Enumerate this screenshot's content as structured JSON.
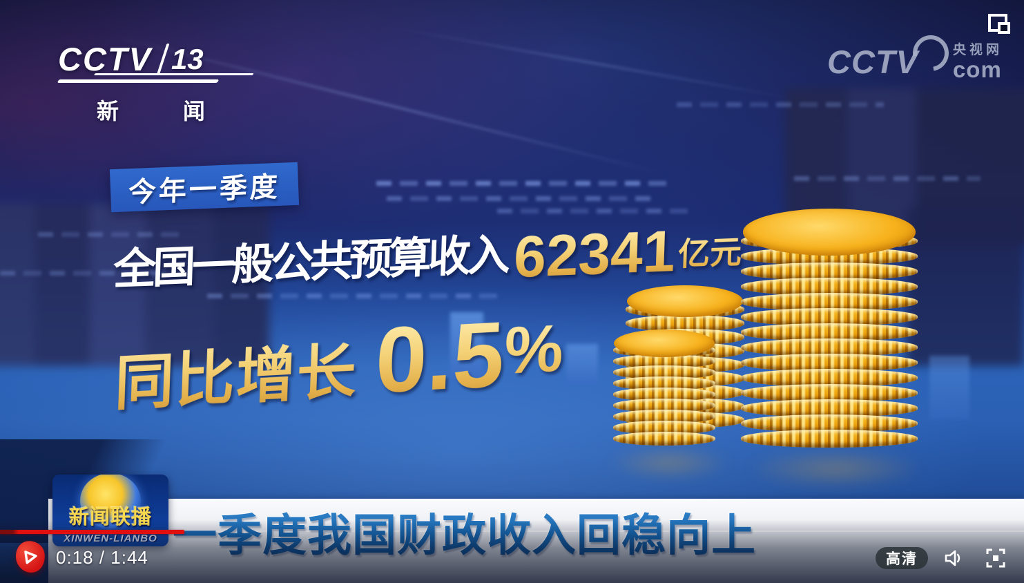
{
  "channel_logo": {
    "brand": "CCTV",
    "channel_number": "13",
    "channel_name": "新 闻"
  },
  "site_watermark": {
    "brand": "CCTV",
    "site_name": "央视网",
    "domain": "com"
  },
  "infographic": {
    "period_tag": "今年一季度",
    "revenue_label": "全国一般公共预算收入",
    "revenue_value": "62341",
    "revenue_unit": "亿元",
    "growth_label": "同比增长",
    "growth_value": "0.5",
    "growth_unit": "%",
    "accent_gold": "#f0c868",
    "tag_background": "#2c63c8"
  },
  "coin_graphic": {
    "coin_color": "#f5b71e",
    "stacks": [
      {
        "name": "small-front",
        "coins": 9
      },
      {
        "name": "medium-back",
        "coins": 9
      },
      {
        "name": "tall-right",
        "coins": 14
      }
    ]
  },
  "program_logo": {
    "title": "新闻联播",
    "subtitle": "XINWEN-LIANBO"
  },
  "headline": {
    "text": "一季度我国财政收入回稳向上",
    "text_color": "#1566b0"
  },
  "player": {
    "time_display": "0:18 / 1:44",
    "elapsed": "0:18",
    "duration": "1:44",
    "progress_percent": 18,
    "progress_color": "#e01010",
    "quality_badge": "高清",
    "icons": {
      "play": "play-icon",
      "volume": "volume-icon",
      "fullscreen": "fullscreen-icon",
      "pip": "mini-player-icon"
    }
  }
}
